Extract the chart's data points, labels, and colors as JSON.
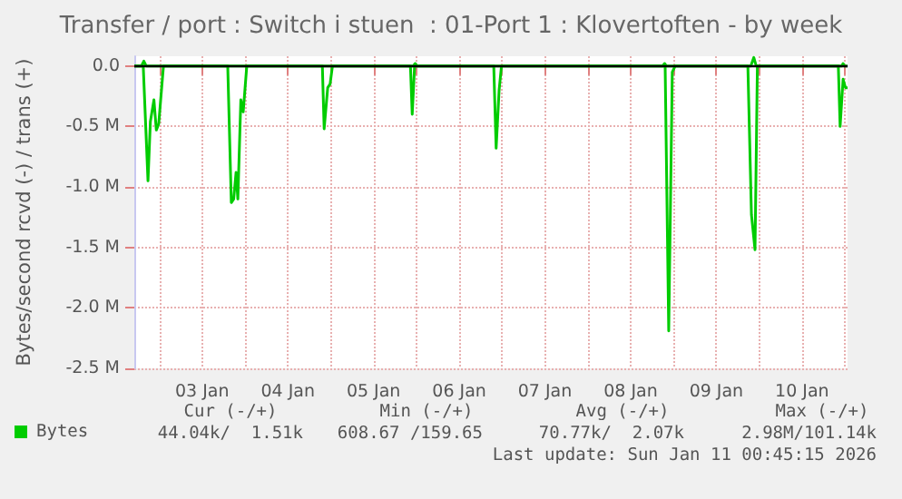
{
  "chart_data": {
    "type": "line",
    "title": "Transfer / port : Switch i stuen  : 01-Port 1 : Klovertoften - by week",
    "ylabel": "Bytes/second rcvd (-) / trans (+)",
    "xlim": [
      "2026-01-02T17:00",
      "2026-01-11T00:45"
    ],
    "xticks": [
      {
        "value": "2026-01-03T00:00",
        "label": null
      },
      {
        "value": "2026-01-03T12:00",
        "label": "03 Jan"
      },
      {
        "value": "2026-01-04T00:00",
        "label": null
      },
      {
        "value": "2026-01-04T12:00",
        "label": "04 Jan"
      },
      {
        "value": "2026-01-05T00:00",
        "label": null
      },
      {
        "value": "2026-01-05T12:00",
        "label": "05 Jan"
      },
      {
        "value": "2026-01-06T00:00",
        "label": null
      },
      {
        "value": "2026-01-06T12:00",
        "label": "06 Jan"
      },
      {
        "value": "2026-01-07T00:00",
        "label": null
      },
      {
        "value": "2026-01-07T12:00",
        "label": "07 Jan"
      },
      {
        "value": "2026-01-08T00:00",
        "label": null
      },
      {
        "value": "2026-01-08T12:00",
        "label": "08 Jan"
      },
      {
        "value": "2026-01-09T00:00",
        "label": null
      },
      {
        "value": "2026-01-09T12:00",
        "label": "09 Jan"
      },
      {
        "value": "2026-01-10T00:00",
        "label": null
      },
      {
        "value": "2026-01-10T12:00",
        "label": "10 Jan"
      },
      {
        "value": "2026-01-11T00:00",
        "label": null
      }
    ],
    "ylim": [
      -2500000,
      80000
    ],
    "yticks": [
      {
        "value": 0,
        "label": "0.0"
      },
      {
        "value": -500000,
        "label": "-0.5 M"
      },
      {
        "value": -1000000,
        "label": "-1.0 M"
      },
      {
        "value": -1500000,
        "label": "-1.5 M"
      },
      {
        "value": -2000000,
        "label": "-2.0 M"
      },
      {
        "value": -2500000,
        "label": "-2.5 M"
      }
    ],
    "grid": true,
    "legend": "bottom left",
    "marker": "none",
    "line_style": "solid",
    "ref_lines": [
      {
        "axis": "y",
        "value": 0,
        "color": "#000000"
      }
    ],
    "series": [
      {
        "name": "Bytes",
        "color": "#00cc00",
        "x": [
          "2026-01-02T17:00",
          "2026-01-02T19:30",
          "2026-01-02T20:50",
          "2026-01-02T21:30",
          "2026-01-02T22:30",
          "2026-01-02T23:10",
          "2026-01-02T23:50",
          "2026-01-03T01:10",
          "2026-01-03T19:10",
          "2026-01-03T20:10",
          "2026-01-03T20:50",
          "2026-01-03T21:30",
          "2026-01-03T22:00",
          "2026-01-03T22:50",
          "2026-01-03T23:30",
          "2026-01-04T00:30",
          "2026-01-04T21:40",
          "2026-01-04T22:10",
          "2026-01-04T23:10",
          "2026-01-04T23:50",
          "2026-01-05T00:30",
          "2026-01-05T22:20",
          "2026-01-05T22:50",
          "2026-01-05T23:30",
          "2026-01-06T21:40",
          "2026-01-06T22:20",
          "2026-01-06T23:10",
          "2026-01-06T23:50",
          "2026-01-08T21:40",
          "2026-01-08T22:40",
          "2026-01-08T23:40",
          "2026-01-09T00:30",
          "2026-01-09T20:50",
          "2026-01-09T21:50",
          "2026-01-09T22:50",
          "2026-01-09T23:30",
          "2026-01-10T22:10",
          "2026-01-10T22:40",
          "2026-01-10T23:30",
          "2026-01-11T00:10",
          "2026-01-11T00:45"
        ],
        "values": [
          0,
          0,
          -950000,
          -460000,
          -280000,
          -530000,
          -480000,
          0,
          0,
          -1130000,
          -1100000,
          -880000,
          -1100000,
          -280000,
          -380000,
          0,
          0,
          -520000,
          -180000,
          -150000,
          0,
          0,
          -400000,
          0,
          0,
          -680000,
          -200000,
          0,
          0,
          -2190000,
          -50000,
          0,
          0,
          -1230000,
          -1520000,
          0,
          0,
          -500000,
          -110000,
          -180000,
          -180000
        ]
      },
      {
        "color": "#00cc00",
        "x": [
          "2026-01-02T17:00",
          "2026-01-02T19:00",
          "2026-01-02T19:40",
          "2026-01-02T20:20",
          "2026-01-05T23:10",
          "2026-01-05T23:40",
          "2026-01-06T00:10",
          "2026-01-08T21:00",
          "2026-01-08T21:30",
          "2026-01-08T22:00",
          "2026-01-09T21:40",
          "2026-01-09T22:30",
          "2026-01-09T23:10",
          "2026-01-10T23:10",
          "2026-01-10T23:30",
          "2026-01-10T23:50",
          "2026-01-11T00:45"
        ],
        "values": [
          0,
          0,
          40000,
          0,
          0,
          20000,
          0,
          0,
          20000,
          0,
          0,
          70000,
          0,
          0,
          20000,
          0,
          0
        ]
      }
    ],
    "annotations": [
      "Cur (-/+)",
      "Min (-/+)",
      "Avg (-/+)",
      "Max (-/+)",
      "44.04k/  1.51k",
      "608.67 /159.65",
      "70.77k/  2.07k",
      "2.98M/101.14k",
      "Last update: Sun Jan 11 00:45:15 2026"
    ]
  }
}
